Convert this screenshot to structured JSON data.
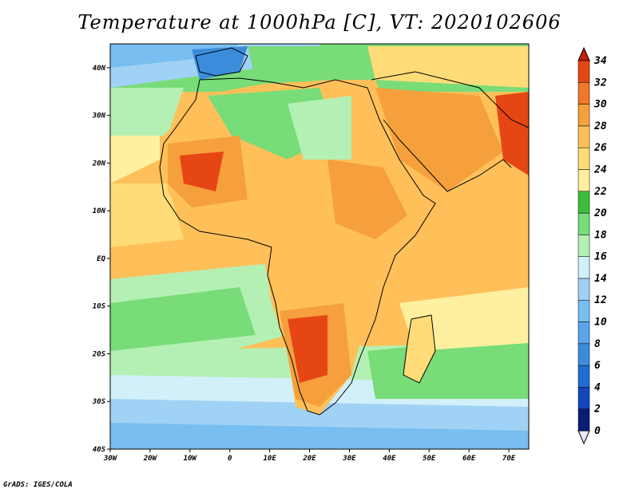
{
  "title": "Temperature at 1000hPa [C], VT: 2020102606",
  "credit": "GrADS: IGES/COLA",
  "map": {
    "projection": "latlon",
    "lon_range": [
      -30,
      75
    ],
    "lat_range": [
      -40,
      45
    ],
    "x_ticks": [
      "30W",
      "20W",
      "10W",
      "0",
      "10E",
      "20E",
      "30E",
      "40E",
      "50E",
      "60E",
      "70E"
    ],
    "y_ticks": [
      "40N",
      "30N",
      "20N",
      "10N",
      "EQ",
      "10S",
      "20S",
      "30S",
      "40S"
    ]
  },
  "colorbar": {
    "levels": [
      "0",
      "2",
      "4",
      "6",
      "8",
      "10",
      "12",
      "14",
      "16",
      "18",
      "20",
      "22",
      "24",
      "26",
      "28",
      "30",
      "32",
      "34"
    ],
    "colors": [
      "#e8e8f8",
      "#0a1e78",
      "#1446be",
      "#1e6ed2",
      "#3c8cdc",
      "#5aa5eb",
      "#78bef0",
      "#a0d2f5",
      "#d2f0fa",
      "#b4f0b4",
      "#78dc78",
      "#3cbe3c",
      "#fff0a0",
      "#ffdc78",
      "#ffc05a",
      "#f5a03c",
      "#f07828",
      "#e64614",
      "#c81e0a"
    ]
  }
}
